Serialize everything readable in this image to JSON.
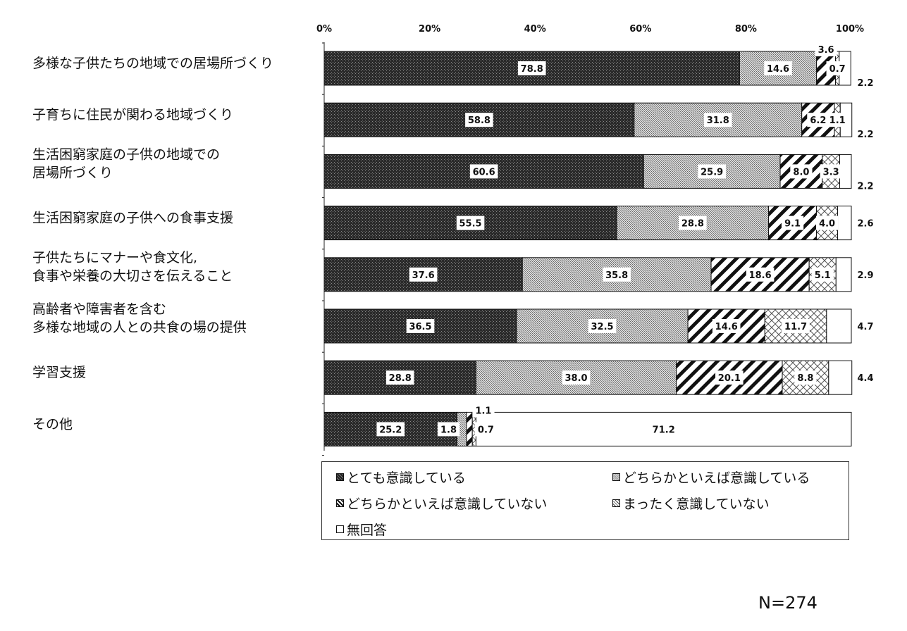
{
  "chart_data": {
    "type": "bar",
    "orientation": "horizontal",
    "stacked": true,
    "xlim": [
      0,
      100
    ],
    "x_ticks": [
      "0%",
      "20%",
      "40%",
      "60%",
      "80%",
      "100%"
    ],
    "categories": [
      [
        "多様な子供たちの地域での居場所づくり"
      ],
      [
        "子育ちに住民が関わる地域づくり"
      ],
      [
        "生活困窮家庭の子供の地域での",
        "居場所づくり"
      ],
      [
        "生活困窮家庭の子供への食事支援"
      ],
      [
        "子供たちにマナーや食文化,",
        "食事や栄養の大切さを伝えること"
      ],
      [
        "高齢者や障害者を含む",
        "多様な地域の人との共食の場の提供"
      ],
      [
        "学習支援"
      ],
      [
        "その他"
      ]
    ],
    "series": [
      {
        "name": "とても意識している",
        "values": [
          78.8,
          58.8,
          60.6,
          55.5,
          37.6,
          36.5,
          28.8,
          25.2
        ]
      },
      {
        "name": "どちらかといえば意識している",
        "values": [
          14.6,
          31.8,
          25.9,
          28.8,
          35.8,
          32.5,
          38.0,
          1.8
        ]
      },
      {
        "name": "どちらかといえば意識していない",
        "values": [
          3.6,
          6.2,
          8.0,
          9.1,
          18.6,
          14.6,
          20.1,
          1.1
        ]
      },
      {
        "name": "まったく意識していない",
        "values": [
          0.7,
          1.1,
          3.3,
          4.0,
          5.1,
          11.7,
          8.8,
          0.7
        ]
      },
      {
        "name": "無回答",
        "values": [
          2.2,
          2.2,
          2.2,
          2.6,
          2.9,
          4.7,
          4.4,
          71.2
        ]
      }
    ],
    "data_labels": [
      [
        "78.8",
        "14.6",
        "3.6",
        "0.7",
        "2.2"
      ],
      [
        "58.8",
        "31.8",
        "6.2",
        "1.1",
        "2.2"
      ],
      [
        "60.6",
        "25.9",
        "8.0",
        "3.3",
        "2.2"
      ],
      [
        "55.5",
        "28.8",
        "9.1",
        "4.0",
        "2.6"
      ],
      [
        "37.6",
        "35.8",
        "18.6",
        "5.1",
        "2.9"
      ],
      [
        "36.5",
        "32.5",
        "14.6",
        "11.7",
        "4.7"
      ],
      [
        "28.8",
        "38.0",
        "20.1",
        "8.8",
        "4.4"
      ],
      [
        "25.2",
        "1.8",
        "1.1",
        "0.7",
        "71.2"
      ]
    ],
    "legend_position": "bottom",
    "grid": false
  },
  "legend": {
    "items": [
      "とても意識している",
      "どちらかといえば意識している",
      "どちらかといえば意識していない",
      "まったく意識していない",
      "無回答"
    ]
  },
  "n_label": "N=274"
}
